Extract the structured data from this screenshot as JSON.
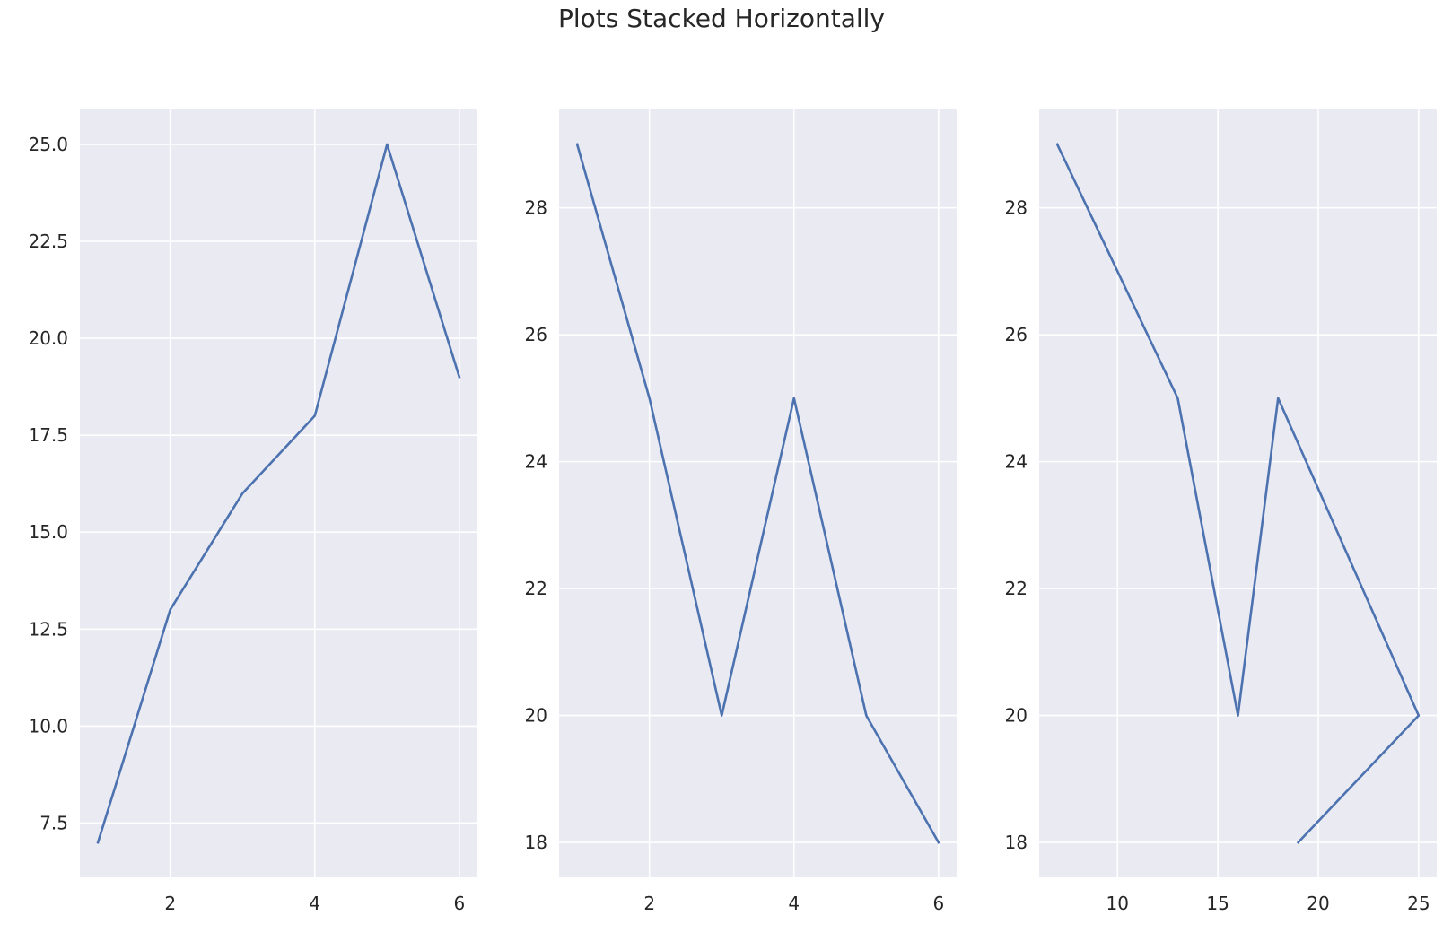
{
  "figure": {
    "title": "Plots Stacked Horizontally",
    "line_color": "#4c72b0",
    "axes_facecolor": "#eaeaf2",
    "grid_color": "#ffffff"
  },
  "chart_data": [
    {
      "type": "line",
      "x": [
        1,
        2,
        3,
        4,
        5,
        6
      ],
      "y": [
        7,
        13,
        16,
        18,
        25,
        19
      ],
      "xlim": [
        0.75,
        6.25
      ],
      "ylim": [
        6.1,
        25.9
      ],
      "xticks": [
        2,
        4,
        6
      ],
      "xtick_labels": [
        "2",
        "4",
        "6"
      ],
      "yticks": [
        7.5,
        10,
        12.5,
        15,
        17.5,
        20,
        22.5,
        25
      ],
      "ytick_labels": [
        "7.5",
        "10.0",
        "12.5",
        "15.0",
        "17.5",
        "20.0",
        "22.5",
        "25.0"
      ],
      "grid": true
    },
    {
      "type": "line",
      "x": [
        1,
        2,
        3,
        4,
        5,
        6
      ],
      "y": [
        29,
        25,
        20,
        25,
        20,
        18
      ],
      "xlim": [
        0.75,
        6.25
      ],
      "ylim": [
        17.45,
        29.55
      ],
      "xticks": [
        2,
        4,
        6
      ],
      "xtick_labels": [
        "2",
        "4",
        "6"
      ],
      "yticks": [
        18,
        20,
        22,
        24,
        26,
        28
      ],
      "ytick_labels": [
        "18",
        "20",
        "22",
        "24",
        "26",
        "28"
      ],
      "grid": true
    },
    {
      "type": "line",
      "x": [
        7,
        13,
        16,
        18,
        25,
        19
      ],
      "y": [
        29,
        25,
        20,
        25,
        20,
        18
      ],
      "xlim": [
        6.1,
        25.9
      ],
      "ylim": [
        17.45,
        29.55
      ],
      "xticks": [
        10,
        15,
        20,
        25
      ],
      "xtick_labels": [
        "10",
        "15",
        "20",
        "25"
      ],
      "yticks": [
        18,
        20,
        22,
        24,
        26,
        28
      ],
      "ytick_labels": [
        "18",
        "20",
        "22",
        "24",
        "26",
        "28"
      ],
      "grid": true
    }
  ]
}
